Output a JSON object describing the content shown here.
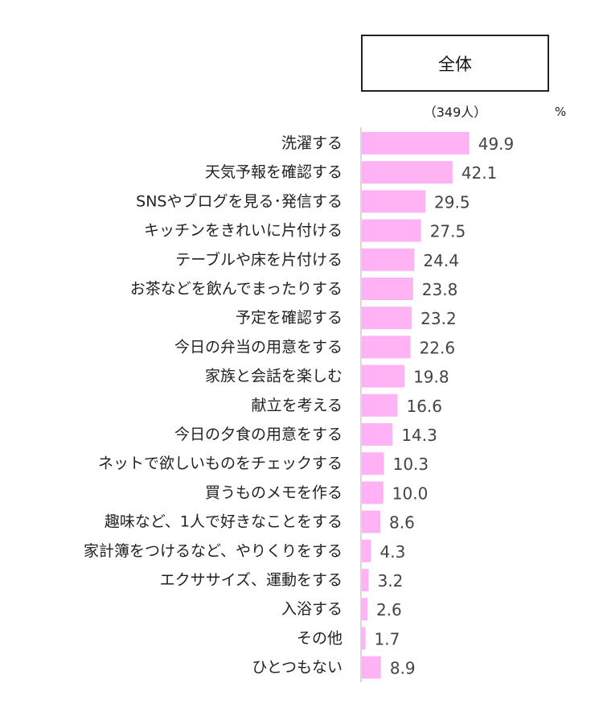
{
  "header": {
    "column_label": "全体",
    "sample_size": "（349人）",
    "unit": "%"
  },
  "chart_data": {
    "type": "bar",
    "orientation": "horizontal",
    "series": [
      {
        "name": "全体",
        "color": "#ffb3f5"
      }
    ],
    "categories": [
      "洗濯する",
      "天気予報を確認する",
      "SNSやブログを見る･発信する",
      "キッチンをきれいに片付ける",
      "テーブルや床を片付ける",
      "お茶などを飲んでまったりする",
      "予定を確認する",
      "今日の弁当の用意をする",
      "家族と会話を楽しむ",
      "献立を考える",
      "今日の夕食の用意をする",
      "ネットで欲しいものをチェックする",
      "買うものメモを作る",
      "趣味など、1人で好きなことをする",
      "家計簿をつけるなど、やりくりをする",
      "エクササイズ、運動をする",
      "入浴する",
      "その他",
      "ひとつもない"
    ],
    "values": [
      49.9,
      42.1,
      29.5,
      27.5,
      24.4,
      23.8,
      23.2,
      22.6,
      19.8,
      16.6,
      14.3,
      10.3,
      10.0,
      8.6,
      4.3,
      3.2,
      2.6,
      1.7,
      8.9
    ],
    "value_labels": [
      "49.9",
      "42.1",
      "29.5",
      "27.5",
      "24.4",
      "23.8",
      "23.2",
      "22.6",
      "19.8",
      "16.6",
      "14.3",
      "10.3",
      "10.0",
      "8.6",
      "4.3",
      "3.2",
      "2.6",
      "1.7",
      "8.9"
    ],
    "xlim": [
      0,
      100
    ],
    "grid": false,
    "legend": "none",
    "axis_color": "#cccccc",
    "label_color": "#222222",
    "value_color": "#444444"
  }
}
